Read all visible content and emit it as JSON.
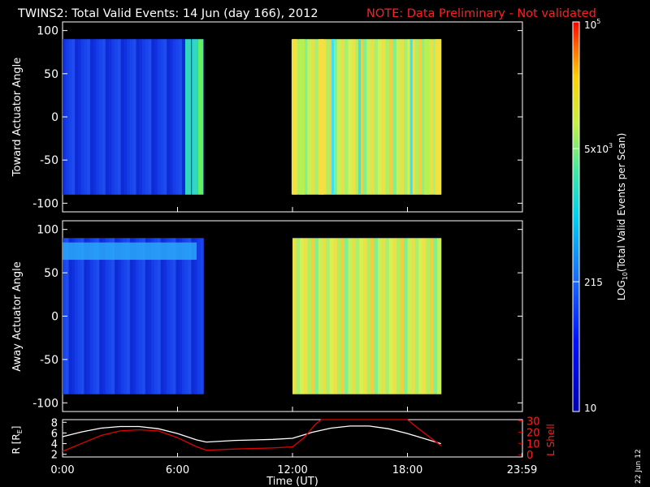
{
  "title": {
    "main": "TWINS2: Total Valid Events: 14 Jun (day 166), 2012",
    "note": "NOTE: Data Preliminary - Not validated",
    "note_color": "#ff1f1f"
  },
  "chart_data": [
    {
      "type": "heatmap",
      "panel": "toward",
      "ylabel": "Toward Actuator Angle",
      "ylim": [
        -110,
        110
      ],
      "yticks": [
        "100",
        "50",
        "0",
        "-50",
        "-100"
      ],
      "ytick_values": [
        100,
        50,
        0,
        -50,
        -100
      ],
      "xlim_hours": [
        0,
        24
      ],
      "angle_range": [
        -90,
        90
      ],
      "data_blocks_hours": [
        [
          0.0,
          7.35
        ],
        [
          12.0,
          19.75
        ]
      ],
      "bright_columns_hours": [
        {
          "t": 6.55,
          "level": "cyan-green"
        },
        {
          "t": 6.9,
          "level": "cyan-green"
        },
        {
          "t": 7.2,
          "level": "green"
        },
        {
          "t": 12.1,
          "level": "yellow"
        },
        {
          "t": 12.5,
          "level": "yellow-green"
        },
        {
          "t": 13.5,
          "level": "yellow"
        },
        {
          "t": 14.1,
          "level": "cyan"
        },
        {
          "t": 15.5,
          "level": "cyan"
        },
        {
          "t": 18.2,
          "level": "cyan"
        },
        {
          "t": 19.0,
          "level": "yellow-green"
        },
        {
          "t": 19.6,
          "level": "yellow"
        }
      ],
      "background_level": "blue"
    },
    {
      "type": "heatmap",
      "panel": "away",
      "ylabel": "Away Actuator Angle",
      "ylim": [
        -110,
        110
      ],
      "yticks": [
        "100",
        "50",
        "0",
        "-50",
        "-100"
      ],
      "ytick_values": [
        100,
        50,
        0,
        -50,
        -100
      ],
      "xlim_hours": [
        0,
        24
      ],
      "angle_range": [
        -90,
        90
      ],
      "data_blocks_hours": [
        [
          0.0,
          7.35
        ],
        [
          12.0,
          19.75
        ]
      ],
      "bright_band": {
        "angle_start": 85,
        "angle_end": 65,
        "t_start": 0.0,
        "t_end": 7.0
      },
      "background_level": "blue"
    },
    {
      "type": "line",
      "panel": "orbit",
      "xlabel": "Time (UT)",
      "ylabel_left": "R [R",
      "ylabel_left_sub": "E",
      "ylabel_left_end": "]",
      "ylabel_right": "L Shell",
      "left_ticks": [
        "8",
        "6",
        "4",
        "2"
      ],
      "left_tick_values": [
        8,
        6,
        4,
        2
      ],
      "right_ticks": [
        "30",
        "20",
        "10",
        "0"
      ],
      "right_tick_values": [
        30,
        20,
        10,
        0
      ],
      "left_ylim": [
        1.5,
        8.5
      ],
      "right_ylim": [
        -2,
        31
      ],
      "xticks": [
        "0:00",
        "6:00",
        "12:00",
        "18:00",
        "23:59"
      ],
      "xtick_values": [
        0,
        6,
        12,
        18,
        23.98
      ],
      "series": [
        {
          "axis": "left",
          "color": "#ffffff",
          "x": [
            0,
            1,
            2,
            3,
            4,
            5,
            6,
            7,
            7.5,
            9,
            10,
            11,
            12,
            13,
            14,
            15,
            16,
            17,
            18,
            19,
            19.75
          ],
          "y": [
            5.3,
            6.2,
            6.9,
            7.2,
            7.2,
            6.8,
            5.9,
            4.7,
            4.3,
            4.6,
            4.7,
            4.8,
            5.0,
            6.1,
            6.9,
            7.3,
            7.3,
            6.8,
            5.9,
            4.8,
            4.0
          ]
        },
        {
          "axis": "right",
          "color": "#e00000",
          "x": [
            0,
            1,
            2,
            3,
            4,
            5,
            6,
            7,
            7.5,
            9,
            10,
            11,
            12,
            12.6,
            13.2,
            13.5,
            18.0,
            18.5,
            19.2,
            19.75
          ],
          "y": [
            3,
            10,
            17,
            21,
            22,
            21,
            15,
            7,
            4,
            5,
            5.5,
            6,
            7,
            15,
            27,
            31,
            31,
            24,
            15,
            8
          ]
        }
      ]
    }
  ],
  "colorbar": {
    "label_pre": "LOG",
    "label_sub": "10",
    "label_post": "(Total Valid Events per Scan)",
    "ticks": [
      {
        "label": "10",
        "value": 10
      },
      {
        "label": "215",
        "value": 215
      },
      {
        "label": "5x10",
        "sup": "3",
        "value": 5000
      },
      {
        "label": "10",
        "sup": "5",
        "value": 100000
      }
    ],
    "range": [
      10,
      100000
    ],
    "log_scale": true
  },
  "date_stamp": "22 Jun 12"
}
